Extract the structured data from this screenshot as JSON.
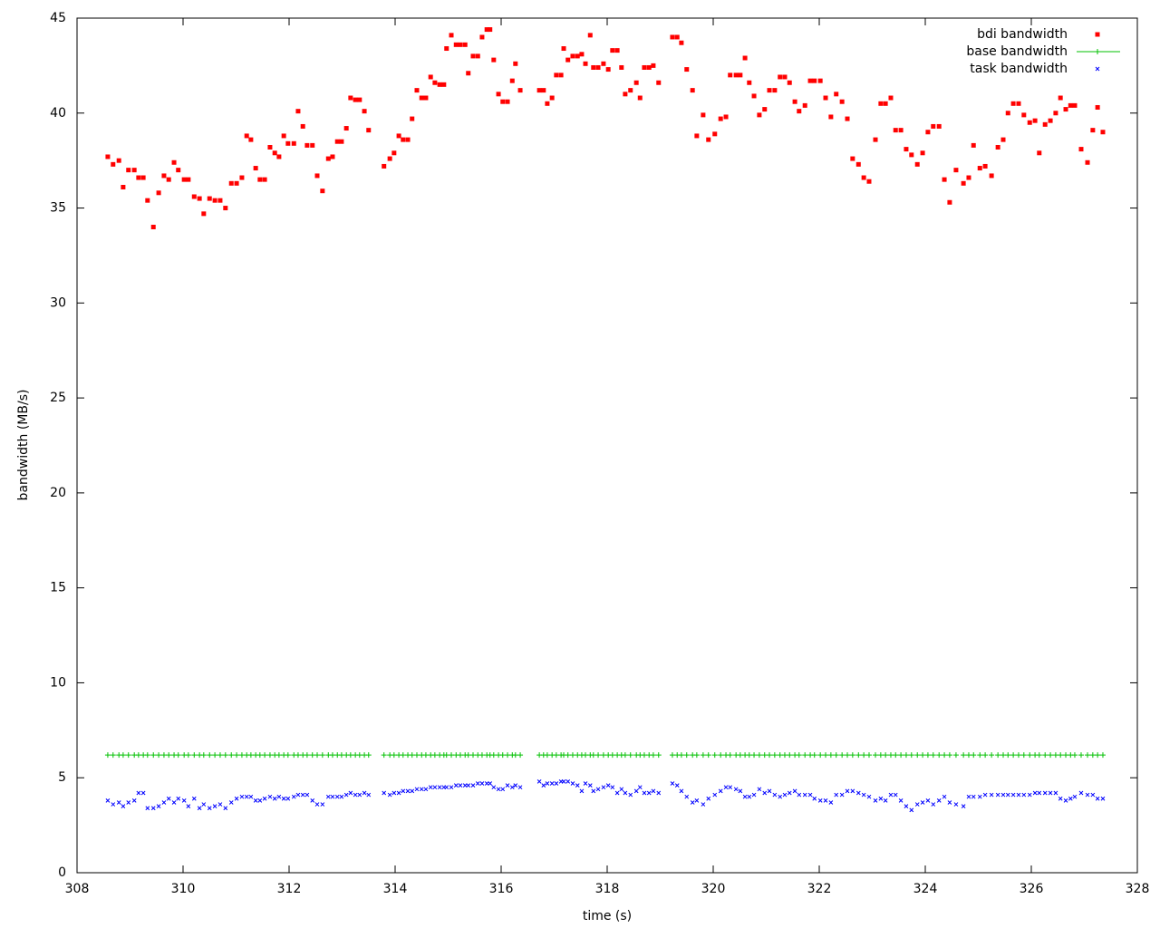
{
  "chart_data": {
    "type": "scatter",
    "xlabel": "time (s)",
    "ylabel": "bandwidth (MB/s)",
    "xlim": [
      308,
      328
    ],
    "xticks": [
      308,
      310,
      312,
      314,
      316,
      318,
      320,
      322,
      324,
      326,
      328
    ],
    "ylim": [
      0,
      45
    ],
    "yticks": [
      0,
      5,
      10,
      15,
      20,
      25,
      30,
      35,
      40,
      45
    ],
    "legend": "top-right",
    "x": [
      308.58,
      308.68,
      308.79,
      308.87,
      308.97,
      309.08,
      309.16,
      309.25,
      309.33,
      309.44,
      309.54,
      309.64,
      309.73,
      309.83,
      309.91,
      310.02,
      310.1,
      310.21,
      310.31,
      310.39,
      310.5,
      310.6,
      310.7,
      310.8,
      310.91,
      311.01,
      311.11,
      311.2,
      311.28,
      311.37,
      311.45,
      311.54,
      311.64,
      311.73,
      311.81,
      311.9,
      311.98,
      312.09,
      312.17,
      312.26,
      312.34,
      312.44,
      312.53,
      312.63,
      312.74,
      312.82,
      312.91,
      312.99,
      313.08,
      313.16,
      313.25,
      313.33,
      313.42,
      313.5,
      313.79,
      313.9,
      313.98,
      314.07,
      314.15,
      314.24,
      314.32,
      314.41,
      314.5,
      314.58,
      314.67,
      314.75,
      314.84,
      314.92,
      314.97,
      315.06,
      315.15,
      315.23,
      315.32,
      315.38,
      315.47,
      315.56,
      315.64,
      315.73,
      315.79,
      315.86,
      315.95,
      316.03,
      316.12,
      316.21,
      316.27,
      316.36,
      316.72,
      316.8,
      316.87,
      316.96,
      317.04,
      317.13,
      317.18,
      317.26,
      317.35,
      317.44,
      317.52,
      317.59,
      317.68,
      317.74,
      317.83,
      317.93,
      318.02,
      318.1,
      318.19,
      318.27,
      318.34,
      318.44,
      318.55,
      318.62,
      318.7,
      318.79,
      318.87,
      318.97,
      319.23,
      319.32,
      319.4,
      319.5,
      319.61,
      319.69,
      319.81,
      319.91,
      320.03,
      320.14,
      320.24,
      320.32,
      320.43,
      320.51,
      320.6,
      320.68,
      320.77,
      320.87,
      320.97,
      321.06,
      321.16,
      321.26,
      321.35,
      321.44,
      321.54,
      321.62,
      321.73,
      321.83,
      321.91,
      322.02,
      322.12,
      322.22,
      322.32,
      322.43,
      322.53,
      322.63,
      322.74,
      322.84,
      322.94,
      323.06,
      323.16,
      323.25,
      323.35,
      323.44,
      323.54,
      323.64,
      323.74,
      323.85,
      323.95,
      324.05,
      324.15,
      324.26,
      324.36,
      324.46,
      324.58,
      324.72,
      324.82,
      324.91,
      325.03,
      325.13,
      325.25,
      325.37,
      325.47,
      325.56,
      325.66,
      325.76,
      325.86,
      325.97,
      326.07,
      326.15,
      326.26,
      326.36,
      326.46,
      326.55,
      326.65,
      326.74,
      326.82,
      326.94,
      327.06,
      327.16,
      327.25,
      327.35
    ],
    "series": [
      {
        "name": "bdi bandwidth",
        "color": "#ff0000",
        "marker": "square",
        "values": [
          37.7,
          37.3,
          37.5,
          36.1,
          37.0,
          37.0,
          36.6,
          36.6,
          35.4,
          34.0,
          35.8,
          36.7,
          36.5,
          37.4,
          37.0,
          36.5,
          36.5,
          35.6,
          35.5,
          34.7,
          35.5,
          35.4,
          35.4,
          35.0,
          36.3,
          36.3,
          36.6,
          38.8,
          38.6,
          37.1,
          36.5,
          36.5,
          38.2,
          37.9,
          37.7,
          38.8,
          38.4,
          38.4,
          40.1,
          39.3,
          38.3,
          38.3,
          36.7,
          35.9,
          37.6,
          37.7,
          38.5,
          38.5,
          39.2,
          40.8,
          40.7,
          40.7,
          40.1,
          39.1,
          37.2,
          37.6,
          37.9,
          38.8,
          38.6,
          38.6,
          39.7,
          41.2,
          40.8,
          40.8,
          41.9,
          41.6,
          41.5,
          41.5,
          43.4,
          44.1,
          43.6,
          43.6,
          43.6,
          42.1,
          43.0,
          43.0,
          44.0,
          44.4,
          44.4,
          42.8,
          41.0,
          40.6,
          40.6,
          41.7,
          42.6,
          41.2,
          41.2,
          41.2,
          40.5,
          40.8,
          42.0,
          42.0,
          43.4,
          42.8,
          43.0,
          43.0,
          43.1,
          42.6,
          44.1,
          42.4,
          42.4,
          42.6,
          42.3,
          43.3,
          43.3,
          42.4,
          41.0,
          41.2,
          41.6,
          40.8,
          42.4,
          42.4,
          42.5,
          41.6,
          44.0,
          44.0,
          43.7,
          42.3,
          41.2,
          38.8,
          39.9,
          38.6,
          38.9,
          39.7,
          39.8,
          42.0,
          42.0,
          42.0,
          42.9,
          41.6,
          40.9,
          39.9,
          40.2,
          41.2,
          41.2,
          41.9,
          41.9,
          41.6,
          40.6,
          40.1,
          40.4,
          41.7,
          41.7,
          41.7,
          40.8,
          39.8,
          41.0,
          40.6,
          39.7,
          37.6,
          37.3,
          36.6,
          36.4,
          38.6,
          40.5,
          40.5,
          40.8,
          39.1,
          39.1,
          38.1,
          37.8,
          37.3,
          37.9,
          39.0,
          39.3,
          39.3,
          36.5,
          35.3,
          37.0,
          36.3,
          36.6,
          38.3,
          37.1,
          37.2,
          36.7,
          38.2,
          38.6,
          40.0,
          40.5,
          40.5,
          39.9,
          39.5,
          39.6,
          37.9,
          39.4,
          39.6,
          40.0,
          40.8,
          40.2,
          40.4,
          40.4,
          38.1,
          37.4,
          39.1,
          40.3,
          39.0
        ]
      },
      {
        "name": "base bandwidth",
        "color": "#00c000",
        "marker": "plus",
        "line": true,
        "values": [
          6.2,
          6.2,
          6.2,
          6.2,
          6.2,
          6.2,
          6.2,
          6.2,
          6.2,
          6.2,
          6.2,
          6.2,
          6.2,
          6.2,
          6.2,
          6.2,
          6.2,
          6.2,
          6.2,
          6.2,
          6.2,
          6.2,
          6.2,
          6.2,
          6.2,
          6.2,
          6.2,
          6.2,
          6.2,
          6.2,
          6.2,
          6.2,
          6.2,
          6.2,
          6.2,
          6.2,
          6.2,
          6.2,
          6.2,
          6.2,
          6.2,
          6.2,
          6.2,
          6.2,
          6.2,
          6.2,
          6.2,
          6.2,
          6.2,
          6.2,
          6.2,
          6.2,
          6.2,
          6.2,
          6.2,
          6.2,
          6.2,
          6.2,
          6.2,
          6.2,
          6.2,
          6.2,
          6.2,
          6.2,
          6.2,
          6.2,
          6.2,
          6.2,
          6.2,
          6.2,
          6.2,
          6.2,
          6.2,
          6.2,
          6.2,
          6.2,
          6.2,
          6.2,
          6.2,
          6.2,
          6.2,
          6.2,
          6.2,
          6.2,
          6.2,
          6.2,
          6.2,
          6.2,
          6.2,
          6.2,
          6.2,
          6.2,
          6.2,
          6.2,
          6.2,
          6.2,
          6.2,
          6.2,
          6.2,
          6.2,
          6.2,
          6.2,
          6.2,
          6.2,
          6.2,
          6.2,
          6.2,
          6.2,
          6.2,
          6.2,
          6.2,
          6.2,
          6.2,
          6.2,
          6.2,
          6.2,
          6.2,
          6.2,
          6.2,
          6.2,
          6.2,
          6.2,
          6.2,
          6.2,
          6.2,
          6.2,
          6.2,
          6.2,
          6.2,
          6.2,
          6.2,
          6.2,
          6.2,
          6.2,
          6.2,
          6.2,
          6.2,
          6.2,
          6.2,
          6.2,
          6.2,
          6.2,
          6.2,
          6.2,
          6.2,
          6.2,
          6.2,
          6.2,
          6.2,
          6.2,
          6.2,
          6.2,
          6.2,
          6.2,
          6.2,
          6.2,
          6.2,
          6.2,
          6.2,
          6.2,
          6.2,
          6.2,
          6.2,
          6.2,
          6.2,
          6.2,
          6.2,
          6.2,
          6.2,
          6.2,
          6.2,
          6.2,
          6.2,
          6.2,
          6.2,
          6.2,
          6.2,
          6.2,
          6.2,
          6.2,
          6.2,
          6.2,
          6.2,
          6.2,
          6.2,
          6.2,
          6.2,
          6.2,
          6.2,
          6.2,
          6.2,
          6.2,
          6.2,
          6.2,
          6.2,
          6.2
        ]
      },
      {
        "name": "task bandwidth",
        "color": "#0000ff",
        "marker": "cross",
        "values": [
          3.8,
          3.6,
          3.7,
          3.5,
          3.7,
          3.8,
          4.2,
          4.2,
          3.4,
          3.4,
          3.5,
          3.7,
          3.9,
          3.7,
          3.9,
          3.8,
          3.5,
          3.9,
          3.4,
          3.6,
          3.4,
          3.5,
          3.6,
          3.4,
          3.7,
          3.9,
          4.0,
          4.0,
          4.0,
          3.8,
          3.8,
          3.9,
          4.0,
          3.9,
          4.0,
          3.9,
          3.9,
          4.0,
          4.1,
          4.1,
          4.1,
          3.8,
          3.6,
          3.6,
          4.0,
          4.0,
          4.0,
          4.0,
          4.1,
          4.2,
          4.1,
          4.1,
          4.2,
          4.1,
          4.2,
          4.1,
          4.2,
          4.2,
          4.3,
          4.3,
          4.3,
          4.4,
          4.4,
          4.4,
          4.5,
          4.5,
          4.5,
          4.5,
          4.5,
          4.5,
          4.6,
          4.6,
          4.6,
          4.6,
          4.6,
          4.7,
          4.7,
          4.7,
          4.7,
          4.5,
          4.4,
          4.4,
          4.6,
          4.5,
          4.6,
          4.5,
          4.8,
          4.6,
          4.7,
          4.7,
          4.7,
          4.8,
          4.8,
          4.8,
          4.7,
          4.6,
          4.3,
          4.7,
          4.6,
          4.3,
          4.4,
          4.5,
          4.6,
          4.5,
          4.2,
          4.4,
          4.2,
          4.1,
          4.3,
          4.5,
          4.2,
          4.2,
          4.3,
          4.2,
          4.7,
          4.6,
          4.3,
          4.0,
          3.7,
          3.8,
          3.6,
          3.9,
          4.1,
          4.3,
          4.5,
          4.5,
          4.4,
          4.3,
          4.0,
          4.0,
          4.1,
          4.4,
          4.2,
          4.3,
          4.1,
          4.0,
          4.1,
          4.2,
          4.3,
          4.1,
          4.1,
          4.1,
          3.9,
          3.8,
          3.8,
          3.7,
          4.1,
          4.1,
          4.3,
          4.3,
          4.2,
          4.1,
          4.0,
          3.8,
          3.9,
          3.8,
          4.1,
          4.1,
          3.8,
          3.5,
          3.3,
          3.6,
          3.7,
          3.8,
          3.6,
          3.8,
          4.0,
          3.7,
          3.6,
          3.5,
          4.0,
          4.0,
          4.0,
          4.1,
          4.1,
          4.1,
          4.1,
          4.1,
          4.1,
          4.1,
          4.1,
          4.1,
          4.2,
          4.2,
          4.2,
          4.2,
          4.2,
          3.9,
          3.8,
          3.9,
          4.0,
          4.2,
          4.1,
          4.1,
          3.9,
          3.9
        ]
      }
    ]
  }
}
